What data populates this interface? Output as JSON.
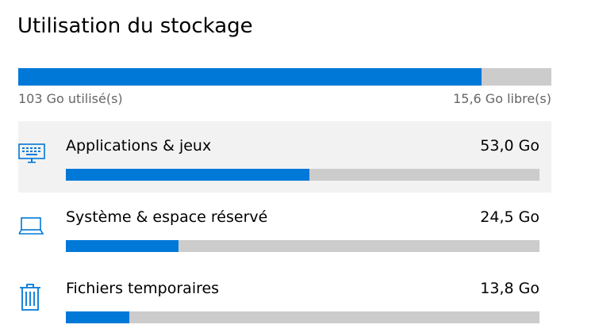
{
  "header": {
    "title": "Utilisation du stockage"
  },
  "storage": {
    "used": 103,
    "used_label": "103 Go utilisé(s)",
    "free": 15.6,
    "free_label": "15,6 Go libre(s)"
  },
  "items": [
    {
      "name": "Applications & jeux",
      "value": 53.0,
      "value_label": "53,0 Go"
    },
    {
      "name": "Système & espace réservé",
      "value": 24.5,
      "value_label": "24,5 Go"
    },
    {
      "name": "Fichiers temporaires",
      "value": 13.8,
      "value_label": "13,8 Go"
    }
  ]
}
